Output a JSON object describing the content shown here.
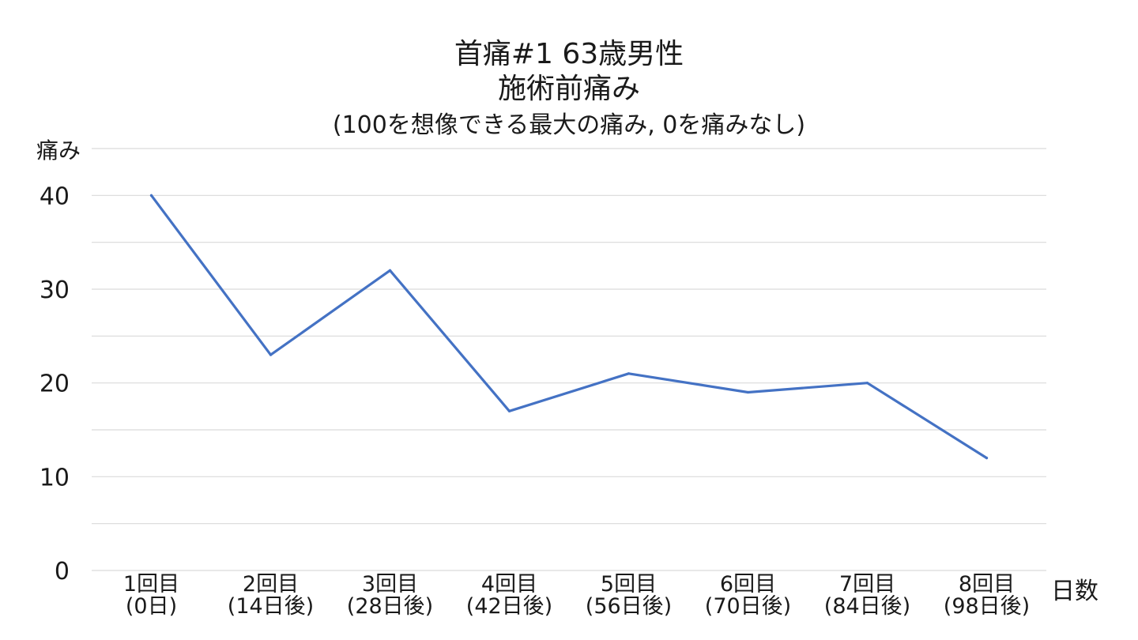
{
  "chart_data": {
    "type": "line",
    "title": "首痛#1 63歳男性",
    "subtitle": "施術前痛み",
    "subtitle2": "(100を想像できる最大の痛み, 0を痛みなし)",
    "xlabel": "日数",
    "ylabel": "痛み",
    "categories": [
      [
        "1回目",
        "(0日)"
      ],
      [
        "2回目",
        "(14日後)"
      ],
      [
        "3回目",
        "(28日後)"
      ],
      [
        "4回目",
        "(42日後)"
      ],
      [
        "5回目",
        "(56日後)"
      ],
      [
        "6回目",
        "(70日後)"
      ],
      [
        "7回目",
        "(84日後)"
      ],
      [
        "8回目",
        "(98日後)"
      ]
    ],
    "series": [
      {
        "values": [
          40,
          23,
          32,
          17,
          21,
          19,
          20,
          12
        ]
      }
    ],
    "ylim": [
      0,
      45
    ],
    "yticks": [
      0,
      10,
      20,
      30,
      40
    ],
    "grid_step": 5,
    "grid": true,
    "line_color": "#4472c4",
    "grid_color": "#d9d9d9"
  }
}
